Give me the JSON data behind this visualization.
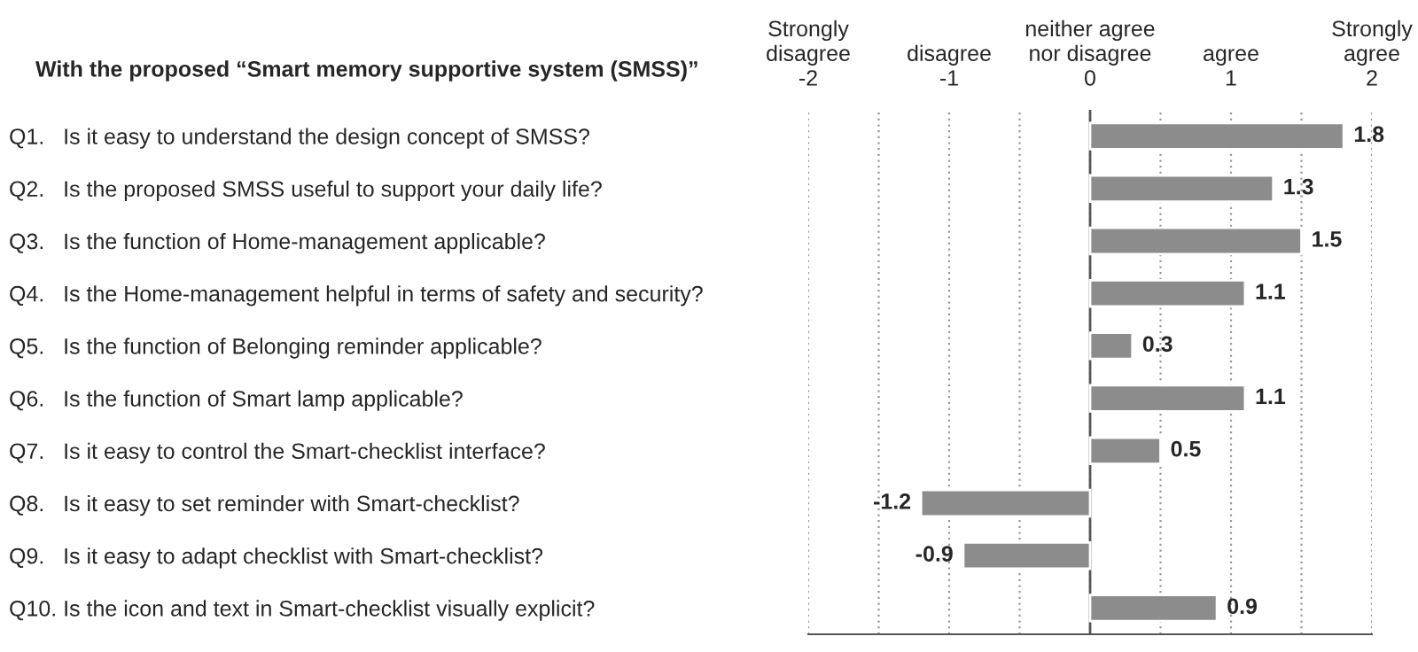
{
  "chart_data": {
    "type": "bar",
    "orientation": "horizontal",
    "title": "With the proposed “Smart memory supportive system (SMSS)”",
    "categories": [
      "Q1.   Is it easy to understand the design concept of SMSS?",
      "Q2.   Is the proposed SMSS useful to support your daily life?",
      "Q3.   Is the function of Home-management applicable?",
      "Q4.   Is the Home-management helpful in terms of safety and security?",
      "Q5.   Is the function of Belonging reminder applicable?",
      "Q6.   Is the function of Smart lamp applicable?",
      "Q7.   Is it easy to control the Smart-checklist interface?",
      "Q8.   Is it easy to set reminder with Smart-checklist?",
      "Q9.   Is it easy to adapt checklist with Smart-checklist?",
      "Q10. Is the icon and text in Smart-checklist visually explicit?"
    ],
    "values": [
      1.8,
      1.3,
      1.5,
      1.1,
      0.3,
      1.1,
      0.5,
      -1.2,
      -0.9,
      0.9
    ],
    "color": "#8c8c8c",
    "data_labels": true,
    "xlim": [
      -2,
      2
    ],
    "xticks": [
      {
        "value": -2,
        "label": "Strongly\ndisagree\n-2"
      },
      {
        "value": -1.5,
        "label": null
      },
      {
        "value": -1,
        "label": "disagree\n-1"
      },
      {
        "value": -0.5,
        "label": null
      },
      {
        "value": 0,
        "label": "neither agree\nnor disagree\n0"
      },
      {
        "value": 0.5,
        "label": null
      },
      {
        "value": 1,
        "label": "agree\n1"
      },
      {
        "value": 1.5,
        "label": null
      },
      {
        "value": 2,
        "label": "Strongly\nagree\n2"
      }
    ],
    "grid": "x",
    "ref_lines": [
      {
        "axis": "x",
        "value": 0,
        "label": null,
        "color": "#555555",
        "line_style": "solid"
      }
    ]
  }
}
